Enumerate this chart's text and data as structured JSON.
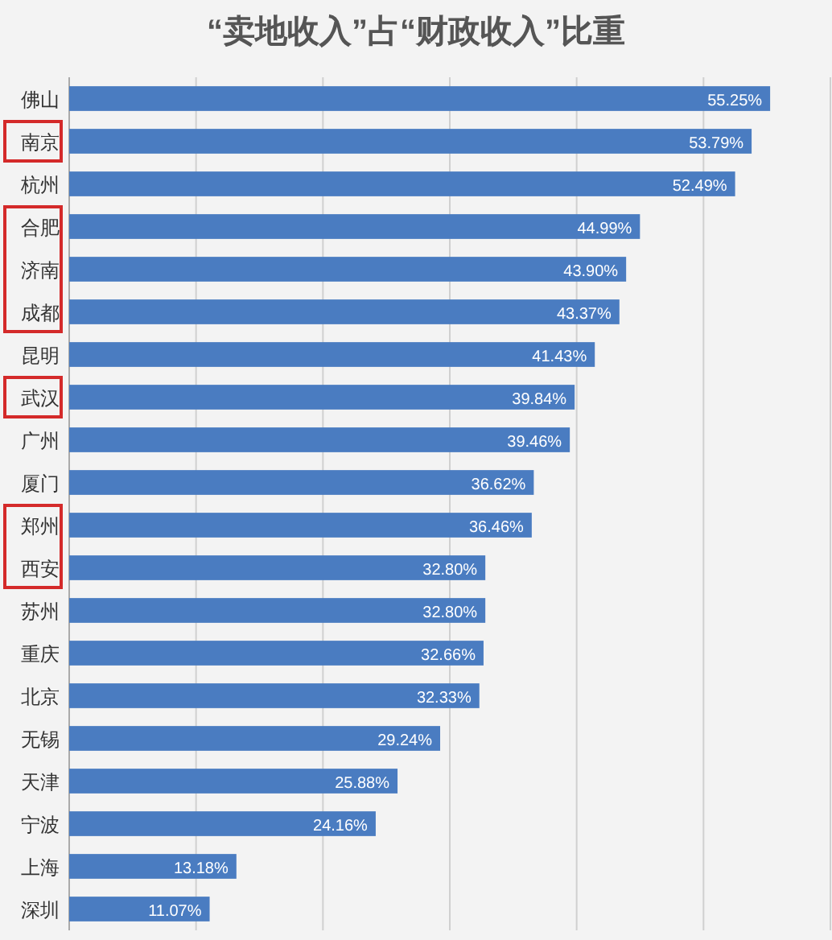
{
  "chart_data": {
    "type": "bar",
    "orientation": "horizontal",
    "title": "“卖地收入”占“财政收入”比重",
    "categories": [
      "佛山",
      "南京",
      "杭州",
      "合肥",
      "济南",
      "成都",
      "昆明",
      "武汉",
      "广州",
      "厦门",
      "郑州",
      "西安",
      "苏州",
      "重庆",
      "北京",
      "无锡",
      "天津",
      "宁波",
      "上海",
      "深圳"
    ],
    "values": [
      55.25,
      53.79,
      52.49,
      44.99,
      43.9,
      43.37,
      41.43,
      39.84,
      39.46,
      36.62,
      36.46,
      32.8,
      32.8,
      32.66,
      32.33,
      29.24,
      25.88,
      24.16,
      13.18,
      11.07
    ],
    "value_labels": [
      "55.25%",
      "53.79%",
      "52.49%",
      "44.99%",
      "43.90%",
      "43.37%",
      "41.43%",
      "39.84%",
      "39.46%",
      "36.62%",
      "36.46%",
      "32.80%",
      "32.80%",
      "32.66%",
      "32.33%",
      "29.24%",
      "25.88%",
      "24.16%",
      "13.18%",
      "11.07%"
    ],
    "color": "#4a7cc1",
    "xlim": [
      0,
      60
    ],
    "xticks": [
      {
        "value": 0,
        "label": null
      },
      {
        "value": 10,
        "label": null
      },
      {
        "value": 20,
        "label": null
      },
      {
        "value": 30,
        "label": null
      },
      {
        "value": 40,
        "label": null
      },
      {
        "value": 50,
        "label": null
      },
      {
        "value": 60,
        "label": null
      }
    ],
    "tick_labels": "y",
    "grid": "x"
  }
}
